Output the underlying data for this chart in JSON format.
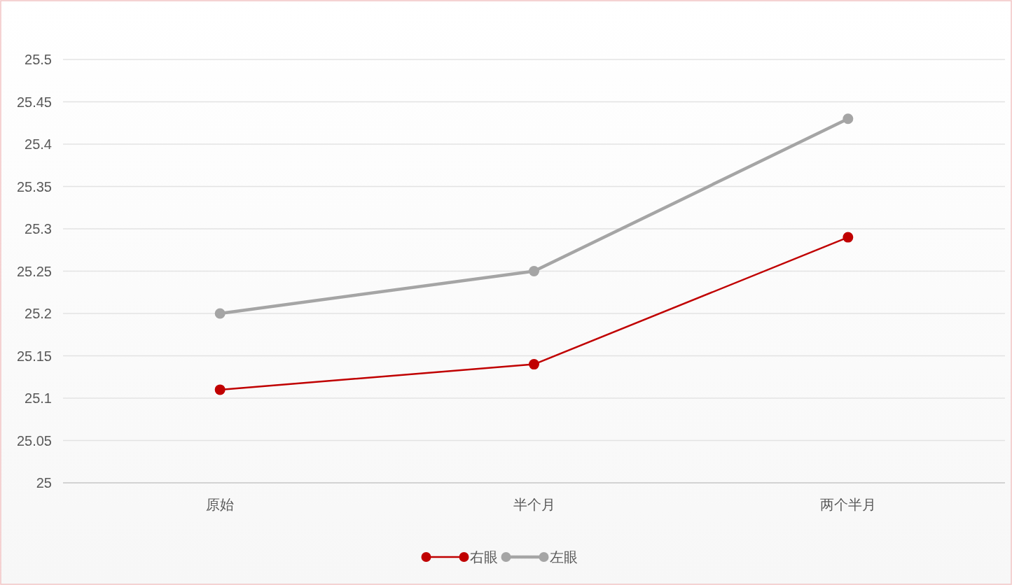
{
  "chart_data": {
    "type": "line",
    "categories": [
      "原始",
      "半个月",
      "两个半月"
    ],
    "series": [
      {
        "name": "右眼",
        "color": "#c00000",
        "values": [
          25.11,
          25.14,
          25.29
        ]
      },
      {
        "name": "左眼",
        "color": "#a5a5a5",
        "values": [
          25.2,
          25.25,
          25.43
        ]
      }
    ],
    "ylim": [
      25,
      25.5
    ],
    "yticks": [
      25,
      25.05,
      25.1,
      25.15,
      25.2,
      25.25,
      25.3,
      25.35,
      25.4,
      25.45,
      25.5
    ],
    "grid": "y",
    "legend": "bottom",
    "marker": "circle",
    "line_style": "solid"
  }
}
